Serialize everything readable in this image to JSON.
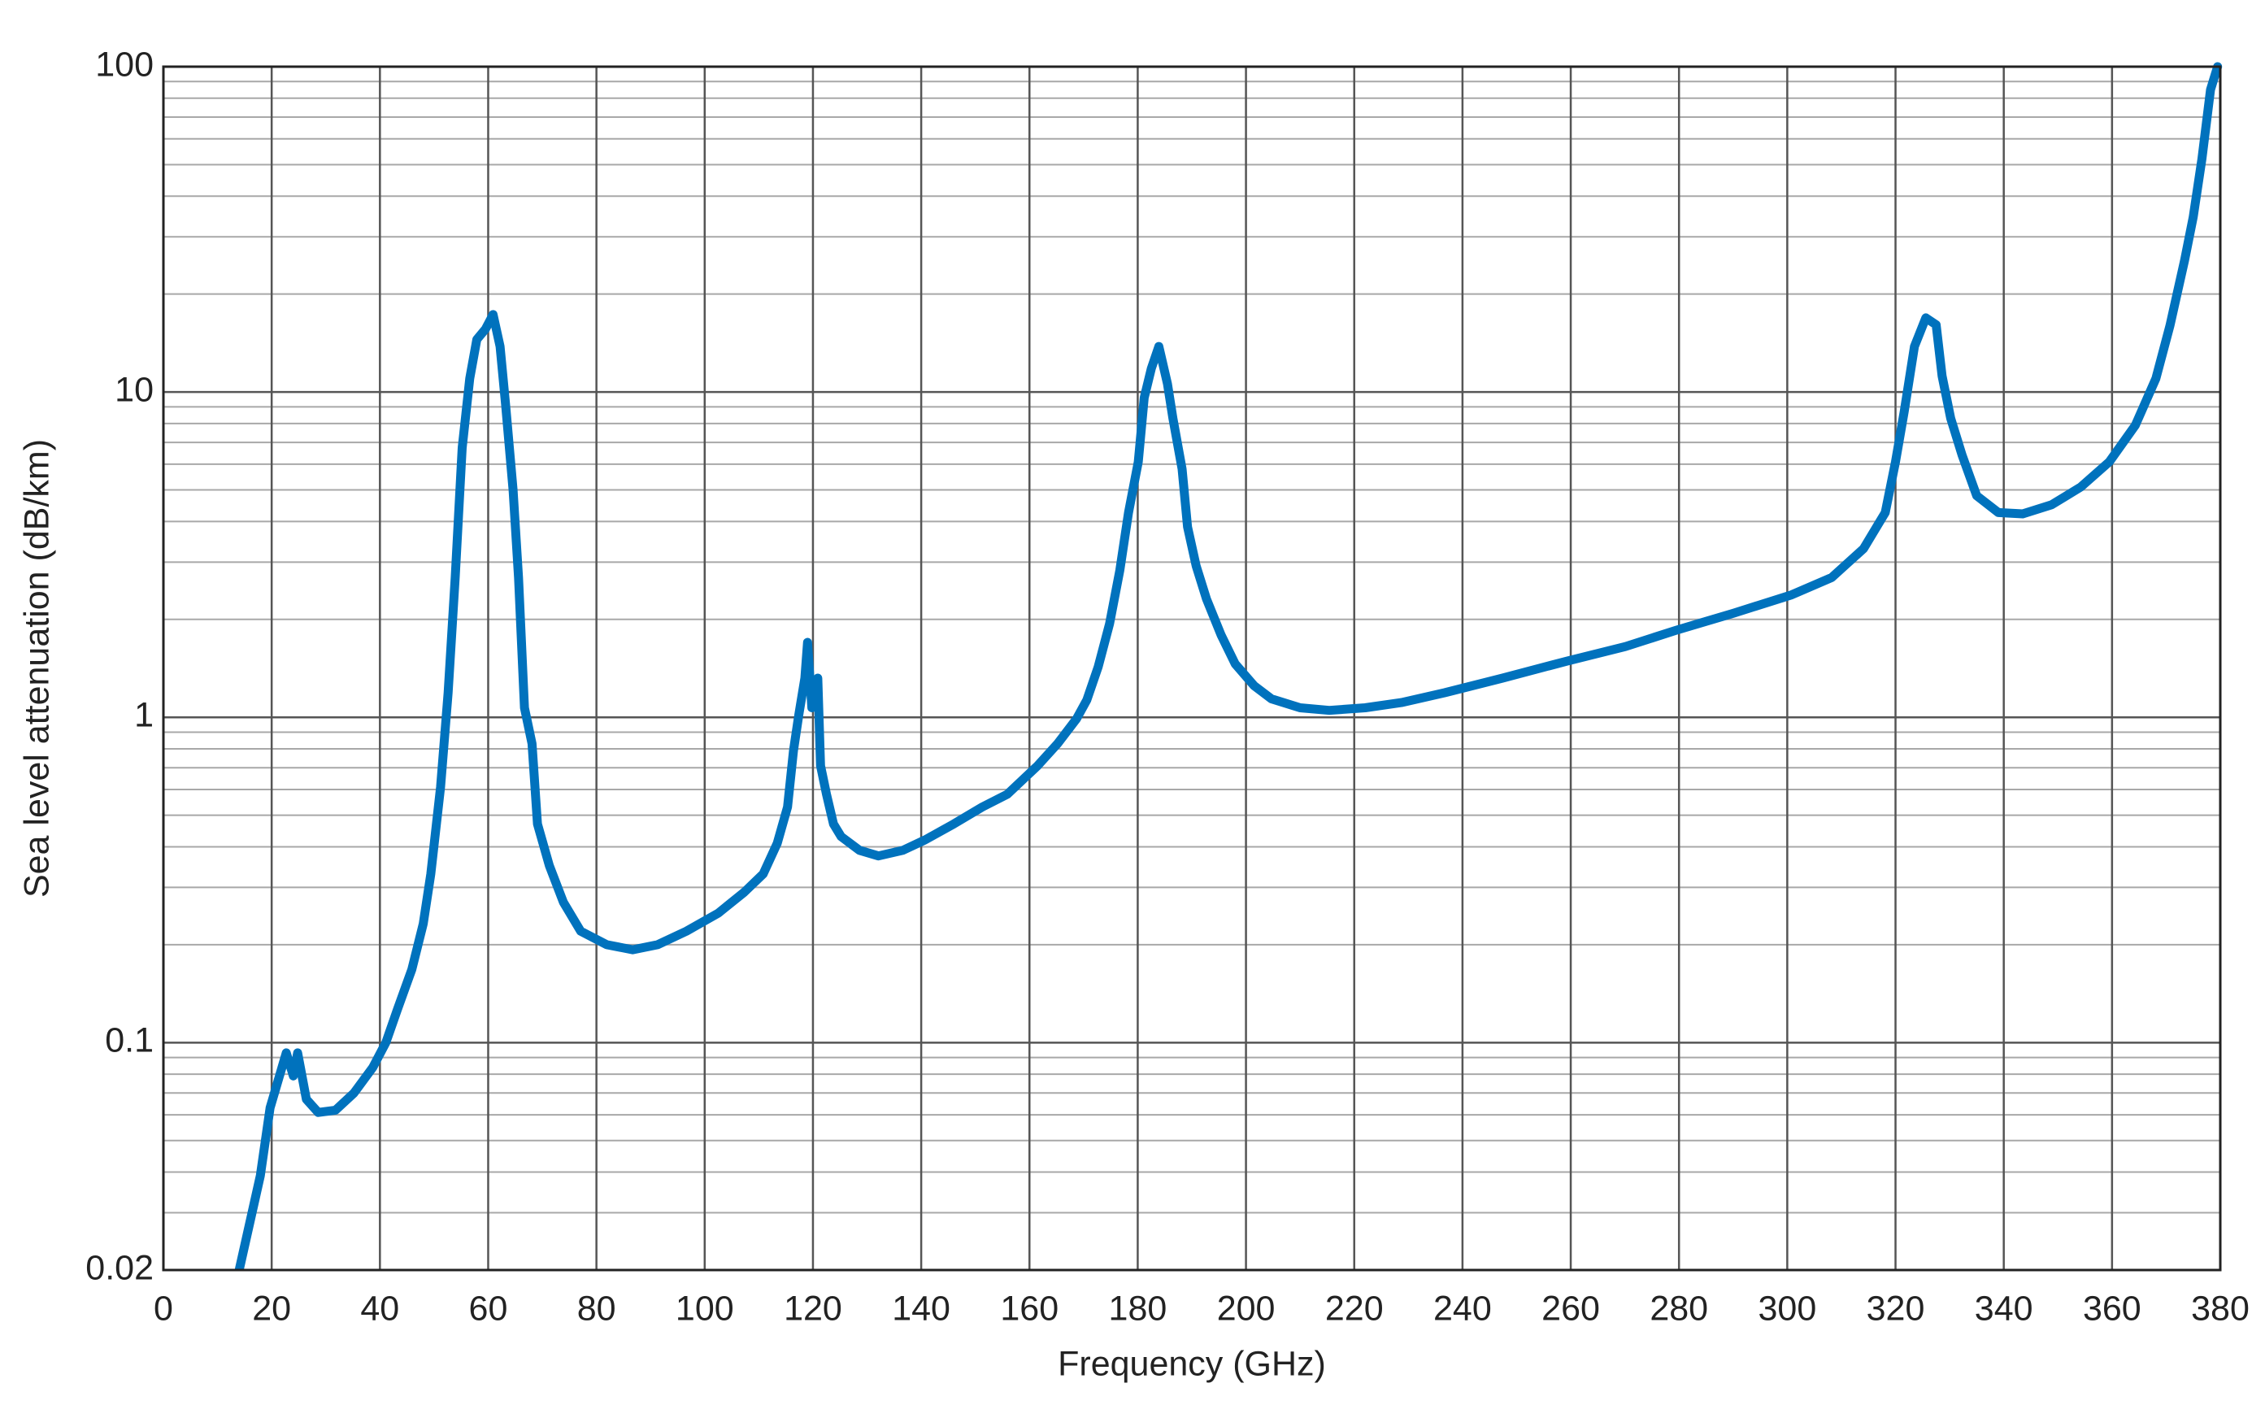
{
  "chart_data": {
    "type": "line",
    "x_label": "Frequency (GHz)",
    "y_label": "Sea level attenuation (dB/km)",
    "xlim": [
      0,
      380
    ],
    "xticks": [
      0,
      20,
      40,
      60,
      80,
      100,
      120,
      140,
      160,
      180,
      200,
      220,
      240,
      260,
      280,
      300,
      320,
      340,
      360,
      380
    ],
    "ylim": [
      0.02,
      100
    ],
    "yticks": [
      0.02,
      0.1,
      1,
      10,
      100
    ],
    "log_y": true,
    "grid": true,
    "minor_grid": true,
    "series": [
      {
        "color": "#0072bd",
        "x": [
          14,
          17.9,
          19.7,
          22.7,
          24,
          24.8,
          26.4,
          28.6,
          31.8,
          35.2,
          38.7,
          41.1,
          43.2,
          45.9,
          48,
          49.4,
          51.2,
          52.6,
          53.9,
          55.2,
          56.6,
          57.9,
          59.5,
          60.9,
          62.2,
          63.2,
          64.6,
          65.6,
          66.7,
          68.1,
          69.1,
          71.3,
          73.9,
          77.1,
          81.9,
          86.7,
          91.3,
          96.6,
          102.5,
          107.3,
          110.8,
          113.4,
          115.3,
          116.4,
          117.4,
          118.5,
          119,
          119.8,
          120.9,
          121.4,
          122.5,
          123.8,
          125.2,
          128.6,
          132.1,
          136.6,
          140.7,
          146,
          151.3,
          155.9,
          161.5,
          165.2,
          168.7,
          170.6,
          172.7,
          174.8,
          176.7,
          178.3,
          180.1,
          181.2,
          182.5,
          183.9,
          185.5,
          186.5,
          188.2,
          189.2,
          190.8,
          192.7,
          195.4,
          198,
          201.5,
          204.7,
          210,
          215.4,
          222,
          228.7,
          236.7,
          247.4,
          259.4,
          270.1,
          279.4,
          290.1,
          300.8,
          308.2,
          314.1,
          318.1,
          320,
          321.6,
          323.5,
          325.6,
          327.5,
          328.6,
          330.2,
          332.3,
          335,
          339,
          343.5,
          348.8,
          354.2,
          359.5,
          364.3,
          368.1,
          370.7,
          373.4,
          375,
          376.6,
          378.2,
          379.5
        ],
        "values": [
          0.02,
          0.039,
          0.063,
          0.093,
          0.079,
          0.093,
          0.067,
          0.061,
          0.062,
          0.07,
          0.084,
          0.1,
          0.126,
          0.168,
          0.232,
          0.33,
          0.61,
          1.19,
          2.69,
          6.74,
          11,
          14.5,
          15.6,
          17.3,
          13.8,
          9.2,
          5,
          2.69,
          1.07,
          0.83,
          0.47,
          0.35,
          0.27,
          0.22,
          0.2,
          0.193,
          0.2,
          0.22,
          0.25,
          0.29,
          0.33,
          0.41,
          0.53,
          0.79,
          1.02,
          1.32,
          1.7,
          1.07,
          1.32,
          0.71,
          0.58,
          0.47,
          0.43,
          0.39,
          0.375,
          0.39,
          0.42,
          0.47,
          0.53,
          0.58,
          0.71,
          0.83,
          0.99,
          1.13,
          1.43,
          1.94,
          2.83,
          4.26,
          6.1,
          9.6,
          11.8,
          13.8,
          10.6,
          8.3,
          5.8,
          3.85,
          2.92,
          2.31,
          1.79,
          1.46,
          1.25,
          1.14,
          1.07,
          1.05,
          1.07,
          1.11,
          1.19,
          1.32,
          1.49,
          1.65,
          1.85,
          2.09,
          2.38,
          2.69,
          3.3,
          4.26,
          6.1,
          8.7,
          13.8,
          16.9,
          16.1,
          11.2,
          8.3,
          6.4,
          4.8,
          4.26,
          4.22,
          4.5,
          5.1,
          6.1,
          7.9,
          11,
          16,
          25.4,
          34.5,
          52,
          85,
          100
        ]
      }
    ]
  }
}
